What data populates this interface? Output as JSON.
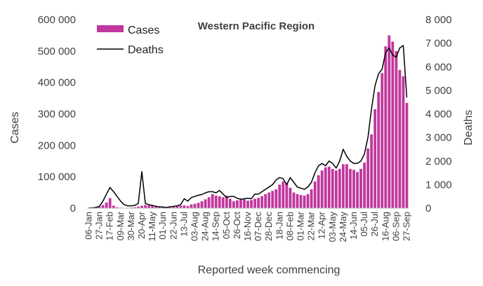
{
  "chart_data": {
    "type": "bar",
    "title": "Western Pacific Region",
    "xlabel": "Reported week commencing",
    "ylabel": "Cases",
    "y2label": "Deaths",
    "ylim": [
      0,
      600000
    ],
    "y2lim": [
      0,
      8000
    ],
    "yticks": [
      "0",
      "100 000",
      "200 000",
      "300 000",
      "400 000",
      "500 000",
      "600 000"
    ],
    "y2ticks": [
      "0",
      "1 000",
      "2 000",
      "3 000",
      "4 000",
      "5 000",
      "6 000",
      "7 000",
      "8 000"
    ],
    "tick_labels": [
      "06-Jan",
      "27-Jan",
      "17-Feb",
      "09-Mar",
      "30-Mar",
      "20-Apr",
      "11-May",
      "01-Jun",
      "22-Jun",
      "13-Jul",
      "03-Aug",
      "24-Aug",
      "14-Sep",
      "05-Oct",
      "26-Oct",
      "16-Nov",
      "07-Dec",
      "28-Dec",
      "18-Jan",
      "08-Feb",
      "01-Mar",
      "22-Mar",
      "12-Apr",
      "03-May",
      "24-May",
      "14-Jun",
      "05-Jul",
      "26-Jul",
      "16-Aug",
      "06-Sep",
      "27-Sep"
    ],
    "tick_positions": [
      0,
      3,
      6,
      9,
      12,
      15,
      18,
      21,
      24,
      27,
      30,
      33,
      36,
      39,
      42,
      45,
      48,
      51,
      54,
      57,
      60,
      63,
      66,
      69,
      72,
      75,
      78,
      81,
      84,
      87,
      90
    ],
    "legend_position": "top-left",
    "colors": {
      "cases": "#c0379e",
      "deaths": "#000000"
    },
    "series": [
      {
        "name": "Cases",
        "type": "bar",
        "axis": "left",
        "values": [
          500,
          1000,
          2000,
          5000,
          10000,
          18000,
          32000,
          8000,
          3000,
          1500,
          1000,
          1500,
          2000,
          3000,
          5000,
          8000,
          10000,
          9000,
          8000,
          6000,
          5000,
          3000,
          2000,
          3000,
          5000,
          8000,
          8000,
          9000,
          7000,
          12000,
          14000,
          17000,
          22000,
          28000,
          35000,
          45000,
          40000,
          38000,
          35000,
          40000,
          30000,
          22000,
          25000,
          27000,
          28000,
          24000,
          26000,
          30000,
          33000,
          38000,
          45000,
          50000,
          55000,
          60000,
          75000,
          85000,
          80000,
          65000,
          50000,
          45000,
          42000,
          40000,
          45000,
          60000,
          85000,
          105000,
          120000,
          130000,
          132000,
          125000,
          120000,
          125000,
          140000,
          140000,
          125000,
          122000,
          115000,
          125000,
          145000,
          190000,
          235000,
          315000,
          370000,
          430000,
          515000,
          550000,
          530000,
          500000,
          440000,
          420000,
          335000
        ]
      },
      {
        "name": "Deaths",
        "type": "line",
        "axis": "right",
        "values": [
          10,
          15,
          30,
          80,
          300,
          600,
          880,
          700,
          500,
          300,
          150,
          100,
          100,
          120,
          200,
          1550,
          200,
          150,
          120,
          80,
          60,
          50,
          30,
          60,
          80,
          100,
          150,
          400,
          300,
          450,
          500,
          550,
          580,
          650,
          700,
          700,
          650,
          750,
          600,
          450,
          500,
          500,
          420,
          380,
          400,
          420,
          400,
          600,
          600,
          700,
          800,
          900,
          1000,
          1200,
          1300,
          1250,
          1000,
          1300,
          1100,
          900,
          850,
          800,
          900,
          1100,
          1500,
          1800,
          1900,
          1800,
          2000,
          1900,
          1700,
          2000,
          2500,
          2200,
          2000,
          1900,
          1900,
          2000,
          2300,
          3000,
          4200,
          5200,
          5700,
          5900,
          6600,
          6800,
          6500,
          6400,
          6800,
          6900,
          4700
        ]
      }
    ]
  }
}
